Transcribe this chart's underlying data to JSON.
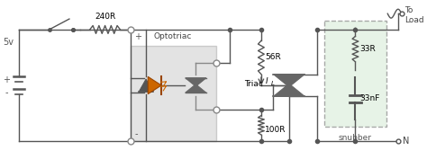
{
  "bg_color": "#ffffff",
  "optotriac_box_color": "#cccccc",
  "snubber_box_color": "#ddeedd",
  "line_color": "#555555",
  "led_color": "#cc6600",
  "triac_color": "#666666",
  "title": "Optotriac",
  "snubber_label": "snubber",
  "resistor_240": "240R",
  "resistor_56": "56R",
  "resistor_100": "100R",
  "resistor_33R": "33R",
  "cap_33nF": "33nF",
  "triac_label": "Triac",
  "IL_label": "I",
  "voltage_label": "5v",
  "to_load_label": "To\nLoad",
  "N_label": "N"
}
